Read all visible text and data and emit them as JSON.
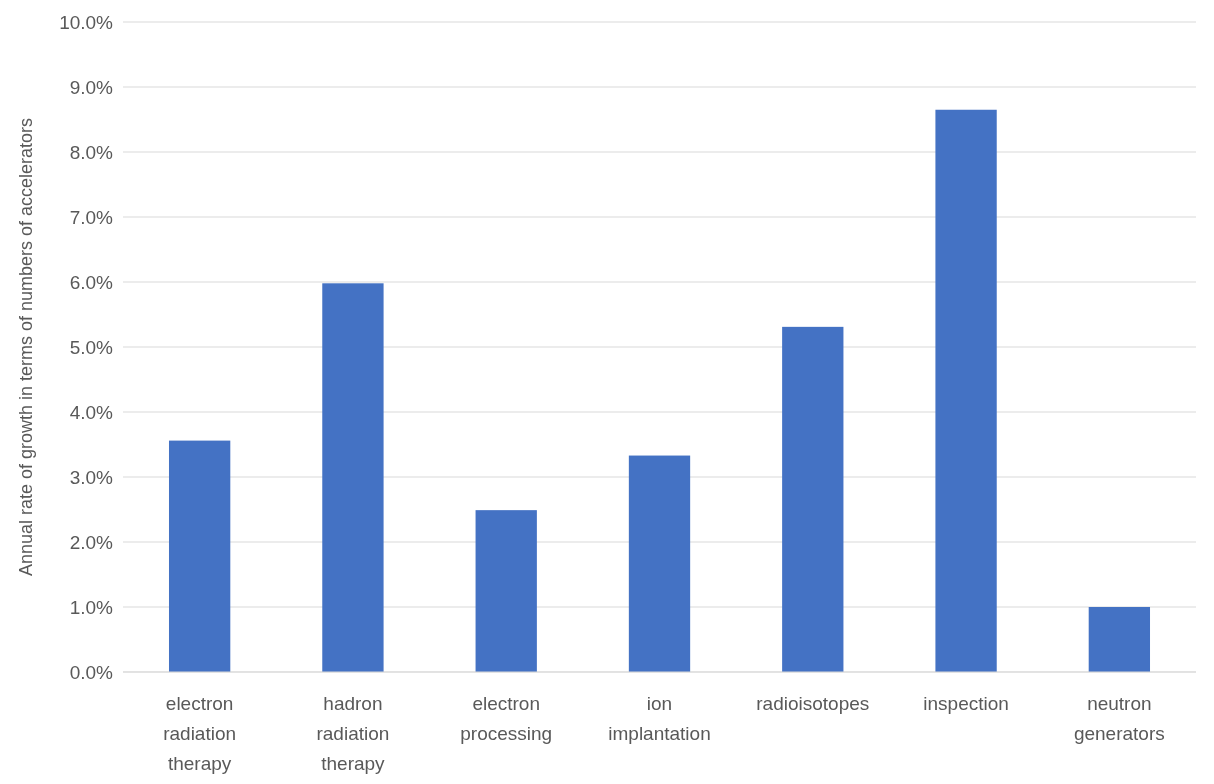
{
  "chart_data": {
    "type": "bar",
    "ylabel": "Annual rate of growth in terms of numbers of accelerators",
    "categories": [
      "electron radiation therapy",
      "hadron radiation therapy",
      "electron processing",
      "ion implantation",
      "radioisotopes",
      "inspection",
      "neutron generators"
    ],
    "values": [
      3.56,
      5.98,
      2.49,
      3.33,
      5.31,
      8.65,
      1.0
    ],
    "color": "#4472c4",
    "ylim": [
      0,
      10
    ],
    "yticks": [
      {
        "value": 0,
        "label": "0.0%"
      },
      {
        "value": 1,
        "label": "1.0%"
      },
      {
        "value": 2,
        "label": "2.0%"
      },
      {
        "value": 3,
        "label": "3.0%"
      },
      {
        "value": 4,
        "label": "4.0%"
      },
      {
        "value": 5,
        "label": "5.0%"
      },
      {
        "value": 6,
        "label": "6.0%"
      },
      {
        "value": 7,
        "label": "7.0%"
      },
      {
        "value": 8,
        "label": "8.0%"
      },
      {
        "value": 9,
        "label": "9.0%"
      },
      {
        "value": 10,
        "label": "10.0%"
      }
    ],
    "grid": "y"
  }
}
